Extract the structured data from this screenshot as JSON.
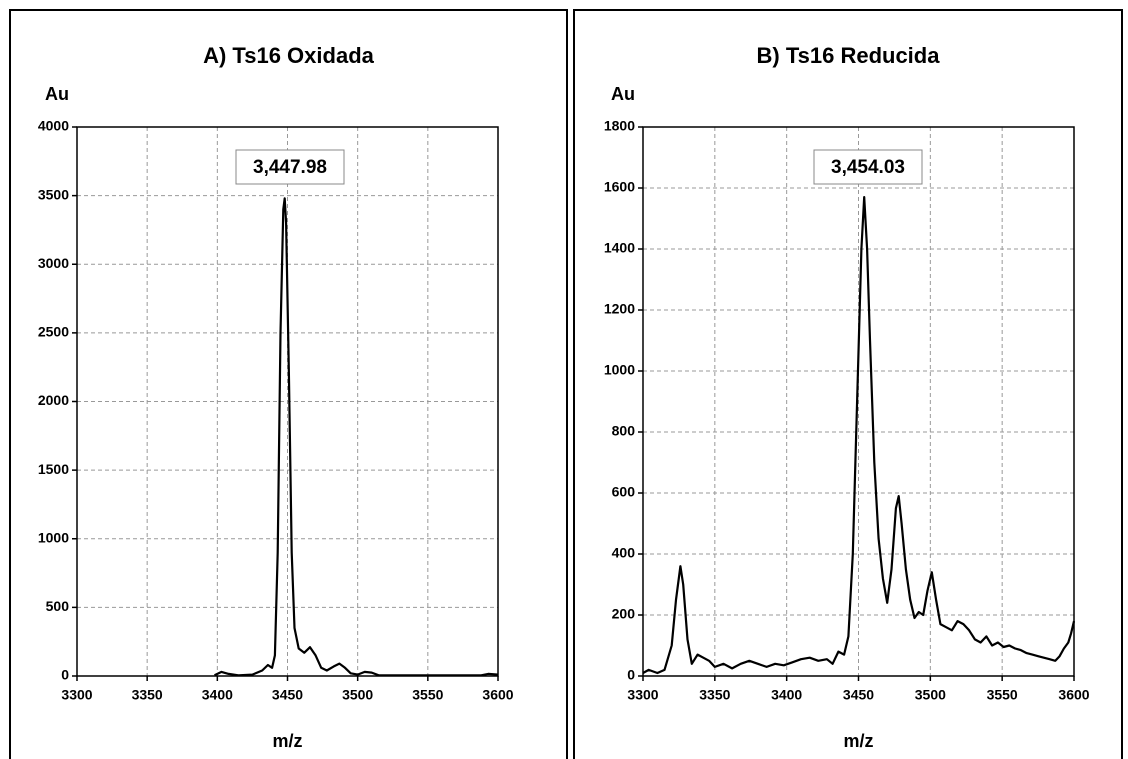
{
  "chart_data": [
    {
      "type": "line",
      "title": "A) Ts16 Oxidada",
      "ylabel": "Au",
      "xlabel": "m/z",
      "annotation": "3,447.98",
      "color": "#000000",
      "grid": true,
      "xlim": [
        3300,
        3600
      ],
      "xticks": [
        3300,
        3350,
        3400,
        3450,
        3500,
        3550,
        3600
      ],
      "ylim": [
        0,
        4000
      ],
      "yticks": [
        0,
        500,
        1000,
        1500,
        2000,
        2500,
        3000,
        3500,
        4000
      ],
      "x": [
        3398,
        3403,
        3408,
        3415,
        3425,
        3432,
        3436,
        3439,
        3441,
        3443,
        3445,
        3447,
        3448,
        3449,
        3451,
        3453,
        3455,
        3458,
        3462,
        3466,
        3470,
        3474,
        3478,
        3483,
        3487,
        3491,
        3495,
        3500,
        3505,
        3510,
        3515,
        3530,
        3550,
        3570,
        3588,
        3593,
        3600
      ],
      "values": [
        5,
        30,
        15,
        5,
        10,
        40,
        80,
        60,
        150,
        900,
        2500,
        3400,
        3480,
        3300,
        2200,
        900,
        350,
        200,
        170,
        210,
        150,
        60,
        40,
        70,
        90,
        60,
        20,
        10,
        30,
        25,
        5,
        5,
        5,
        5,
        5,
        15,
        10
      ]
    },
    {
      "type": "line",
      "title": "B) Ts16 Reducida",
      "ylabel": "Au",
      "xlabel": "m/z",
      "annotation": "3,454.03",
      "color": "#000000",
      "grid": true,
      "xlim": [
        3300,
        3600
      ],
      "xticks": [
        3300,
        3350,
        3400,
        3450,
        3500,
        3550,
        3600
      ],
      "ylim": [
        0,
        1800
      ],
      "yticks": [
        0,
        200,
        400,
        600,
        800,
        1000,
        1200,
        1400,
        1600,
        1800
      ],
      "x": [
        3300,
        3304,
        3310,
        3315,
        3320,
        3323,
        3326,
        3328,
        3331,
        3334,
        3338,
        3342,
        3346,
        3350,
        3356,
        3362,
        3368,
        3374,
        3380,
        3386,
        3392,
        3398,
        3404,
        3410,
        3416,
        3422,
        3428,
        3432,
        3436,
        3440,
        3443,
        3446,
        3449,
        3452,
        3454,
        3456,
        3458,
        3461,
        3464,
        3467,
        3470,
        3473,
        3476,
        3478,
        3480,
        3483,
        3486,
        3489,
        3492,
        3495,
        3498,
        3501,
        3504,
        3507,
        3511,
        3515,
        3519,
        3523,
        3527,
        3531,
        3535,
        3539,
        3543,
        3547,
        3551,
        3555,
        3559,
        3563,
        3567,
        3571,
        3575,
        3579,
        3583,
        3587,
        3590,
        3593,
        3596,
        3598,
        3600
      ],
      "values": [
        10,
        20,
        10,
        20,
        100,
        250,
        360,
        300,
        120,
        40,
        70,
        60,
        50,
        30,
        40,
        25,
        40,
        50,
        40,
        30,
        40,
        35,
        45,
        55,
        60,
        50,
        55,
        40,
        80,
        70,
        130,
        400,
        900,
        1400,
        1570,
        1400,
        1100,
        700,
        450,
        320,
        240,
        350,
        550,
        590,
        500,
        350,
        250,
        190,
        210,
        200,
        280,
        340,
        250,
        170,
        160,
        150,
        180,
        170,
        150,
        120,
        110,
        130,
        100,
        110,
        95,
        100,
        90,
        85,
        75,
        70,
        65,
        60,
        55,
        50,
        65,
        90,
        110,
        140,
        180
      ]
    }
  ]
}
